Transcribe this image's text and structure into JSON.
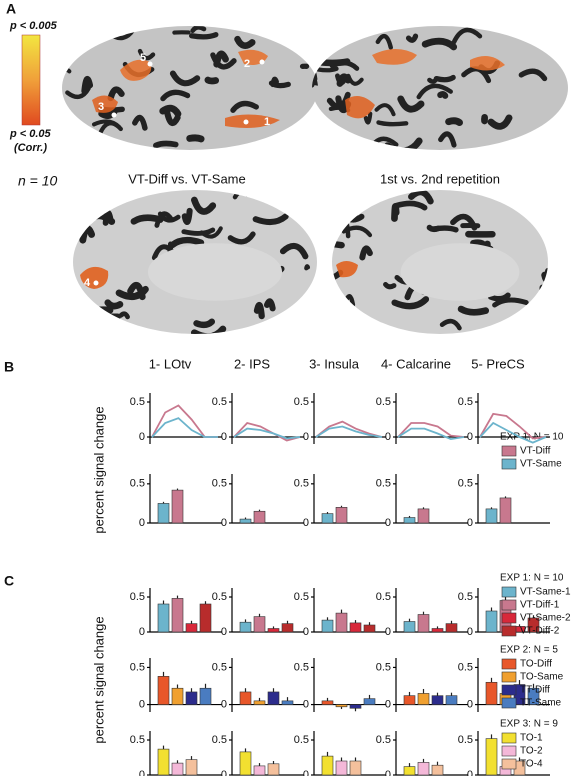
{
  "panel_a": {
    "label": "A",
    "p_high": "p < 0.005",
    "p_low": "p < 0.05",
    "corr": "(Corr.)",
    "n": "n = 10",
    "contrasts": [
      "VT-Diff vs. VT-Same",
      "1st vs. 2nd repetition"
    ],
    "roi_markers": [
      "1",
      "2",
      "3",
      "4",
      "5"
    ]
  },
  "panel_b": {
    "label": "B",
    "ylabel": "percent signal change",
    "legend_title": "EXP 1: N = 10"
  },
  "panel_c": {
    "label": "C",
    "ylabel": "percent signal change",
    "legend_titles": [
      "EXP 1: N = 10",
      "EXP 2: N = 5",
      "EXP 3: N = 9"
    ]
  },
  "chart_data": [
    {
      "type": "line",
      "title": "1- LOtv",
      "categories": [
        null,
        null,
        null,
        null,
        null,
        null
      ],
      "ylim": [
        -0.1,
        0.6
      ],
      "yticks": [
        0,
        0.5
      ],
      "series": [
        {
          "name": "VT-Diff",
          "color": "#c8788e",
          "values": [
            0,
            0.35,
            0.45,
            0.25,
            0,
            0
          ]
        },
        {
          "name": "VT-Same",
          "color": "#6cb4cc",
          "values": [
            0,
            0.2,
            0.27,
            0.1,
            0,
            0
          ]
        }
      ]
    },
    {
      "type": "line",
      "title": "2- IPS",
      "categories": [
        null,
        null,
        null,
        null,
        null,
        null
      ],
      "ylim": [
        -0.1,
        0.6
      ],
      "yticks": [
        0,
        0.5
      ],
      "series": [
        {
          "color": "#c8788e",
          "values": [
            0,
            0.2,
            0.15,
            0.05,
            -0.05,
            0
          ]
        },
        {
          "color": "#6cb4cc",
          "values": [
            0,
            0.12,
            0.1,
            0.05,
            -0.02,
            0
          ]
        }
      ]
    },
    {
      "type": "line",
      "title": "3- Insula",
      "categories": [
        null,
        null,
        null,
        null,
        null,
        null
      ],
      "ylim": [
        -0.1,
        0.6
      ],
      "yticks": [
        0,
        0.5
      ],
      "series": [
        {
          "color": "#c8788e",
          "values": [
            0,
            0.15,
            0.22,
            0.12,
            0.05,
            0
          ]
        },
        {
          "color": "#6cb4cc",
          "values": [
            0,
            0.12,
            0.15,
            0.08,
            0.03,
            0
          ]
        }
      ]
    },
    {
      "type": "line",
      "title": "4- Calcarine",
      "categories": [
        null,
        null,
        null,
        null,
        null,
        null
      ],
      "ylim": [
        -0.1,
        0.6
      ],
      "yticks": [
        0,
        0.5
      ],
      "series": [
        {
          "color": "#c8788e",
          "values": [
            0,
            0.2,
            0.2,
            0.15,
            0.02,
            0
          ]
        },
        {
          "color": "#6cb4cc",
          "values": [
            0,
            0.12,
            0.12,
            0.05,
            -0.03,
            0
          ]
        }
      ]
    },
    {
      "type": "line",
      "title": "5- PreCS",
      "categories": [
        null,
        null,
        null,
        null,
        null,
        null
      ],
      "ylim": [
        -0.1,
        0.6
      ],
      "yticks": [
        0,
        0.5
      ],
      "series": [
        {
          "color": "#c8788e",
          "values": [
            0,
            0.33,
            0.3,
            0.15,
            -0.02,
            0
          ]
        },
        {
          "color": "#6cb4cc",
          "values": [
            0,
            0.2,
            0.1,
            0,
            -0.08,
            0
          ]
        }
      ]
    },
    {
      "type": "bar",
      "ylim": [
        0,
        0.6
      ],
      "yticks": [
        0,
        0.5
      ],
      "series": [
        {
          "color": "#6cb4cc",
          "values": [
            0.25
          ],
          "errors": [
            0.02
          ]
        },
        {
          "color": "#c8788e",
          "values": [
            0.42
          ],
          "errors": [
            0.02
          ]
        }
      ]
    },
    {
      "type": "bar",
      "ylim": [
        0,
        0.6
      ],
      "yticks": [
        0,
        0.5
      ],
      "series": [
        {
          "color": "#6cb4cc",
          "values": [
            0.05
          ],
          "errors": [
            0.02
          ]
        },
        {
          "color": "#c8788e",
          "values": [
            0.15
          ],
          "errors": [
            0.02
          ]
        }
      ]
    },
    {
      "type": "bar",
      "ylim": [
        0,
        0.6
      ],
      "yticks": [
        0,
        0.5
      ],
      "series": [
        {
          "color": "#6cb4cc",
          "values": [
            0.12
          ],
          "errors": [
            0.02
          ]
        },
        {
          "color": "#c8788e",
          "values": [
            0.2
          ],
          "errors": [
            0.02
          ]
        }
      ]
    },
    {
      "type": "bar",
      "ylim": [
        0,
        0.6
      ],
      "yticks": [
        0,
        0.5
      ],
      "series": [
        {
          "color": "#6cb4cc",
          "values": [
            0.07
          ],
          "errors": [
            0.02
          ]
        },
        {
          "color": "#c8788e",
          "values": [
            0.18
          ],
          "errors": [
            0.02
          ]
        }
      ]
    },
    {
      "type": "bar",
      "ylim": [
        0,
        0.6
      ],
      "yticks": [
        0,
        0.5
      ],
      "series": [
        {
          "color": "#6cb4cc",
          "values": [
            0.18
          ],
          "errors": [
            0.02
          ]
        },
        {
          "color": "#c8788e",
          "values": [
            0.32
          ],
          "errors": [
            0.02
          ]
        }
      ]
    },
    {
      "type": "bar",
      "ylim": [
        0,
        0.6
      ],
      "yticks": [
        0,
        0.5
      ],
      "series": [
        {
          "name": "VT-Same-1",
          "color": "#6cb4cc",
          "values": [
            0.4
          ],
          "errors": [
            0.05
          ]
        },
        {
          "name": "VT-Diff-1",
          "color": "#c8788e",
          "values": [
            0.48
          ],
          "errors": [
            0.04
          ]
        },
        {
          "name": "VT-Same-2",
          "color": "#d8283a",
          "values": [
            0.12
          ],
          "errors": [
            0.04
          ]
        },
        {
          "name": "VT-Diff-2",
          "color": "#b82c2c",
          "values": [
            0.4
          ],
          "errors": [
            0.04
          ]
        }
      ]
    },
    {
      "type": "bar",
      "ylim": [
        0,
        0.6
      ],
      "yticks": [
        0,
        0.5
      ],
      "series": [
        {
          "color": "#6cb4cc",
          "values": [
            0.14
          ],
          "errors": [
            0.04
          ]
        },
        {
          "color": "#c8788e",
          "values": [
            0.22
          ],
          "errors": [
            0.04
          ]
        },
        {
          "color": "#d8283a",
          "values": [
            0.05
          ],
          "errors": [
            0.03
          ]
        },
        {
          "color": "#b82c2c",
          "values": [
            0.12
          ],
          "errors": [
            0.04
          ]
        }
      ]
    },
    {
      "type": "bar",
      "ylim": [
        0,
        0.6
      ],
      "yticks": [
        0,
        0.5
      ],
      "series": [
        {
          "color": "#6cb4cc",
          "values": [
            0.17
          ],
          "errors": [
            0.04
          ]
        },
        {
          "color": "#c8788e",
          "values": [
            0.27
          ],
          "errors": [
            0.05
          ]
        },
        {
          "color": "#d8283a",
          "values": [
            0.13
          ],
          "errors": [
            0.04
          ]
        },
        {
          "color": "#b82c2c",
          "values": [
            0.1
          ],
          "errors": [
            0.04
          ]
        }
      ]
    },
    {
      "type": "bar",
      "ylim": [
        0,
        0.6
      ],
      "yticks": [
        0,
        0.5
      ],
      "series": [
        {
          "color": "#6cb4cc",
          "values": [
            0.15
          ],
          "errors": [
            0.04
          ]
        },
        {
          "color": "#c8788e",
          "values": [
            0.25
          ],
          "errors": [
            0.04
          ]
        },
        {
          "color": "#d8283a",
          "values": [
            0.05
          ],
          "errors": [
            0.03
          ]
        },
        {
          "color": "#b82c2c",
          "values": [
            0.12
          ],
          "errors": [
            0.04
          ]
        }
      ]
    },
    {
      "type": "bar",
      "ylim": [
        0,
        0.6
      ],
      "yticks": [
        0,
        0.5
      ],
      "series": [
        {
          "color": "#6cb4cc",
          "values": [
            0.3
          ],
          "errors": [
            0.05
          ]
        },
        {
          "color": "#c8788e",
          "values": [
            0.45
          ],
          "errors": [
            0.05
          ]
        },
        {
          "color": "#d8283a",
          "values": [
            0.08
          ],
          "errors": [
            0.03
          ]
        },
        {
          "color": "#b82c2c",
          "values": [
            0.2
          ],
          "errors": [
            0.04
          ]
        }
      ]
    },
    {
      "type": "bar",
      "ylim": [
        -0.1,
        0.6
      ],
      "yticks": [
        0,
        0.5
      ],
      "series": [
        {
          "name": "TO-Diff",
          "color": "#e8572a",
          "values": [
            0.38
          ],
          "errors": [
            0.06
          ]
        },
        {
          "name": "TO-Same",
          "color": "#f0a030",
          "values": [
            0.22
          ],
          "errors": [
            0.05
          ]
        },
        {
          "name": "TT-Diff",
          "color": "#2c2c8c",
          "values": [
            0.17
          ],
          "errors": [
            0.05
          ]
        },
        {
          "name": "TT-Same",
          "color": "#4a7cc0",
          "values": [
            0.22
          ],
          "errors": [
            0.06
          ]
        }
      ]
    },
    {
      "type": "bar",
      "ylim": [
        -0.1,
        0.6
      ],
      "yticks": [
        0,
        0.5
      ],
      "series": [
        {
          "color": "#e8572a",
          "values": [
            0.17
          ],
          "errors": [
            0.05
          ]
        },
        {
          "color": "#f0a030",
          "values": [
            0.05
          ],
          "errors": [
            0.04
          ]
        },
        {
          "color": "#2c2c8c",
          "values": [
            0.17
          ],
          "errors": [
            0.05
          ]
        },
        {
          "color": "#4a7cc0",
          "values": [
            0.05
          ],
          "errors": [
            0.05
          ]
        }
      ]
    },
    {
      "type": "bar",
      "ylim": [
        -0.1,
        0.6
      ],
      "yticks": [
        0,
        0.5
      ],
      "series": [
        {
          "color": "#e8572a",
          "values": [
            0.05
          ],
          "errors": [
            0.04
          ]
        },
        {
          "color": "#f0a030",
          "values": [
            -0.03
          ],
          "errors": [
            0.03
          ]
        },
        {
          "color": "#2c2c8c",
          "values": [
            -0.05
          ],
          "errors": [
            0.04
          ]
        },
        {
          "color": "#4a7cc0",
          "values": [
            0.08
          ],
          "errors": [
            0.05
          ]
        }
      ]
    },
    {
      "type": "bar",
      "ylim": [
        -0.1,
        0.6
      ],
      "yticks": [
        0,
        0.5
      ],
      "series": [
        {
          "color": "#e8572a",
          "values": [
            0.12
          ],
          "errors": [
            0.05
          ]
        },
        {
          "color": "#f0a030",
          "values": [
            0.15
          ],
          "errors": [
            0.06
          ]
        },
        {
          "color": "#2c2c8c",
          "values": [
            0.12
          ],
          "errors": [
            0.04
          ]
        },
        {
          "color": "#4a7cc0",
          "values": [
            0.12
          ],
          "errors": [
            0.04
          ]
        }
      ]
    },
    {
      "type": "bar",
      "ylim": [
        -0.1,
        0.6
      ],
      "yticks": [
        0,
        0.5
      ],
      "series": [
        {
          "color": "#e8572a",
          "values": [
            0.3
          ],
          "errors": [
            0.06
          ]
        },
        {
          "color": "#f0a030",
          "values": [
            0.15
          ],
          "errors": [
            0.05
          ]
        },
        {
          "color": "#2c2c8c",
          "values": [
            0.27
          ],
          "errors": [
            0.06
          ]
        },
        {
          "color": "#4a7cc0",
          "values": [
            0.22
          ],
          "errors": [
            0.06
          ]
        }
      ]
    },
    {
      "type": "bar",
      "ylim": [
        0,
        0.6
      ],
      "yticks": [
        0,
        0.5
      ],
      "series": [
        {
          "name": "TO-1",
          "color": "#f2e030",
          "values": [
            0.37
          ],
          "errors": [
            0.05
          ]
        },
        {
          "name": "TO-2",
          "color": "#f4b8d8",
          "values": [
            0.17
          ],
          "errors": [
            0.04
          ]
        },
        {
          "name": "TO-4",
          "color": "#f4c09c",
          "values": [
            0.22
          ],
          "errors": [
            0.05
          ]
        }
      ]
    },
    {
      "type": "bar",
      "ylim": [
        0,
        0.6
      ],
      "yticks": [
        0,
        0.5
      ],
      "series": [
        {
          "color": "#f2e030",
          "values": [
            0.33
          ],
          "errors": [
            0.05
          ]
        },
        {
          "color": "#f4b8d8",
          "values": [
            0.13
          ],
          "errors": [
            0.04
          ]
        },
        {
          "color": "#f4c09c",
          "values": [
            0.16
          ],
          "errors": [
            0.04
          ]
        }
      ]
    },
    {
      "type": "bar",
      "ylim": [
        0,
        0.6
      ],
      "yticks": [
        0,
        0.5
      ],
      "series": [
        {
          "color": "#f2e030",
          "values": [
            0.27
          ],
          "errors": [
            0.06
          ]
        },
        {
          "color": "#f4b8d8",
          "values": [
            0.2
          ],
          "errors": [
            0.05
          ]
        },
        {
          "color": "#f4c09c",
          "values": [
            0.2
          ],
          "errors": [
            0.05
          ]
        }
      ]
    },
    {
      "type": "bar",
      "ylim": [
        0,
        0.6
      ],
      "yticks": [
        0,
        0.5
      ],
      "series": [
        {
          "color": "#f2e030",
          "values": [
            0.12
          ],
          "errors": [
            0.05
          ]
        },
        {
          "color": "#f4b8d8",
          "values": [
            0.18
          ],
          "errors": [
            0.05
          ]
        },
        {
          "color": "#f4c09c",
          "values": [
            0.14
          ],
          "errors": [
            0.05
          ]
        }
      ]
    },
    {
      "type": "bar",
      "ylim": [
        0,
        0.6
      ],
      "yticks": [
        0,
        0.5
      ],
      "series": [
        {
          "color": "#f2e030",
          "values": [
            0.52
          ],
          "errors": [
            0.06
          ]
        },
        {
          "color": "#f4b8d8",
          "values": [
            0.12
          ],
          "errors": [
            0.04
          ]
        },
        {
          "color": "#f4c09c",
          "values": [
            0.2
          ],
          "errors": [
            0.05
          ]
        }
      ]
    }
  ]
}
